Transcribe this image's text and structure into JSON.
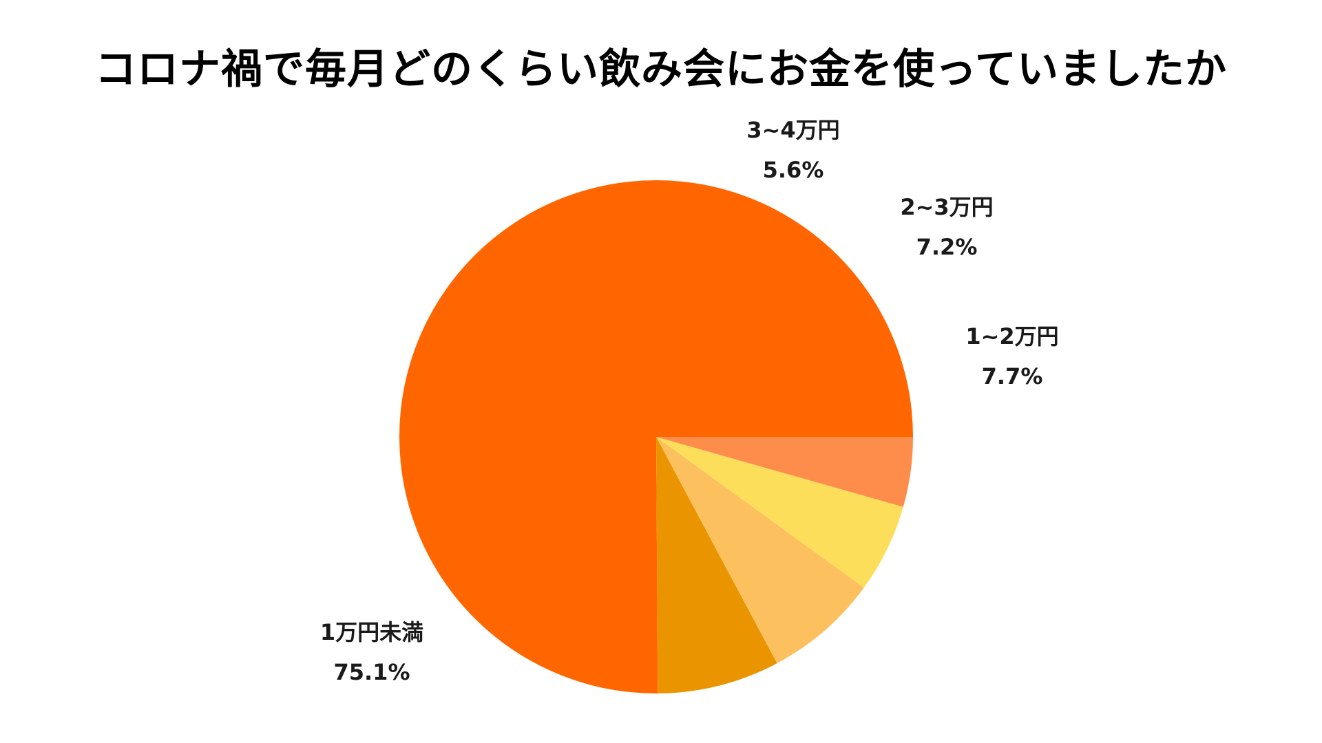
{
  "chart_data": {
    "type": "pie",
    "title": "コロナ禍で毎月どのくらい飲み会にお金を使っていましたか",
    "slices": [
      {
        "label": "1万円未満",
        "value": 75.1,
        "value_label": "75.1%",
        "color": "#FF6600"
      },
      {
        "label": "1~2万円",
        "value": 7.7,
        "value_label": "7.7%",
        "color": "#EA9500"
      },
      {
        "label": "2~3万円",
        "value": 7.2,
        "value_label": "7.2%",
        "color": "#FCC15E"
      },
      {
        "label": "3~4万円",
        "value": 5.6,
        "value_label": "5.6%",
        "color": "#FDDE5B"
      },
      {
        "label": "",
        "value": 4.4,
        "value_label": "",
        "color": "#FE8D4B"
      }
    ],
    "direction": "counterclockwise",
    "start_angle": "3 o'clock",
    "legend": "none",
    "label_placement": "outside"
  }
}
